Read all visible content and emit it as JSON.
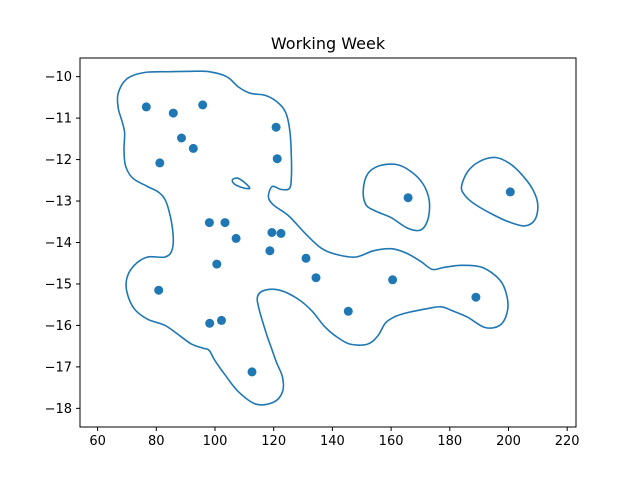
{
  "chart_data": {
    "type": "scatter",
    "title": "Working Week",
    "xlabel": "",
    "ylabel": "",
    "xlim": [
      54,
      223
    ],
    "ylim": [
      -18.45,
      -9.55
    ],
    "xticks": [
      60,
      80,
      100,
      120,
      140,
      160,
      180,
      200,
      220
    ],
    "yticks": [
      -10,
      -11,
      -12,
      -13,
      -14,
      -15,
      -16,
      -17,
      -18
    ],
    "grid": false,
    "legend": "none",
    "colors": {
      "series": "#1f77b4",
      "axes": "#000000",
      "background": "#ffffff"
    },
    "points": [
      {
        "x": 76.6,
        "y": -10.73
      },
      {
        "x": 85.8,
        "y": -10.88
      },
      {
        "x": 95.8,
        "y": -10.68
      },
      {
        "x": 88.6,
        "y": -11.48
      },
      {
        "x": 92.6,
        "y": -11.73
      },
      {
        "x": 81.2,
        "y": -12.08
      },
      {
        "x": 120.8,
        "y": -11.22
      },
      {
        "x": 121.2,
        "y": -11.98
      },
      {
        "x": 98.1,
        "y": -13.52
      },
      {
        "x": 103.4,
        "y": -13.52
      },
      {
        "x": 107.2,
        "y": -13.9
      },
      {
        "x": 119.4,
        "y": -13.76
      },
      {
        "x": 122.5,
        "y": -13.78
      },
      {
        "x": 100.6,
        "y": -14.52
      },
      {
        "x": 118.7,
        "y": -14.2
      },
      {
        "x": 131.0,
        "y": -14.38
      },
      {
        "x": 134.4,
        "y": -14.85
      },
      {
        "x": 80.8,
        "y": -15.15
      },
      {
        "x": 98.2,
        "y": -15.95
      },
      {
        "x": 102.2,
        "y": -15.88
      },
      {
        "x": 112.6,
        "y": -17.12
      },
      {
        "x": 145.4,
        "y": -15.66
      },
      {
        "x": 160.5,
        "y": -14.9
      },
      {
        "x": 165.8,
        "y": -12.92
      },
      {
        "x": 188.9,
        "y": -15.32
      },
      {
        "x": 200.6,
        "y": -12.78
      }
    ],
    "contours": [
      [
        [
          67,
          -10.4
        ],
        [
          70,
          -10.05
        ],
        [
          76,
          -9.9
        ],
        [
          85,
          -9.88
        ],
        [
          92,
          -9.87
        ],
        [
          98,
          -9.88
        ],
        [
          104,
          -10.0
        ],
        [
          108,
          -10.25
        ],
        [
          112,
          -10.4
        ],
        [
          117,
          -10.45
        ],
        [
          121,
          -10.6
        ],
        [
          124,
          -10.85
        ],
        [
          125.5,
          -11.3
        ],
        [
          126,
          -11.9
        ],
        [
          126,
          -12.45
        ],
        [
          125.3,
          -12.7
        ],
        [
          122.5,
          -12.72
        ],
        [
          119.5,
          -12.65
        ],
        [
          118.2,
          -12.9
        ],
        [
          120,
          -13.1
        ],
        [
          125,
          -13.35
        ],
        [
          131,
          -13.8
        ],
        [
          136.5,
          -14.15
        ],
        [
          142,
          -14.3
        ],
        [
          148,
          -14.35
        ],
        [
          154,
          -14.2
        ],
        [
          160,
          -14.15
        ],
        [
          165,
          -14.25
        ],
        [
          170,
          -14.45
        ],
        [
          174,
          -14.65
        ],
        [
          178,
          -14.6
        ],
        [
          184,
          -14.55
        ],
        [
          191,
          -14.6
        ],
        [
          197,
          -14.9
        ],
        [
          199.5,
          -15.3
        ],
        [
          199.5,
          -15.7
        ],
        [
          197,
          -16.0
        ],
        [
          192,
          -16.05
        ],
        [
          186,
          -15.8
        ],
        [
          181,
          -15.65
        ],
        [
          177,
          -15.55
        ],
        [
          172,
          -15.6
        ],
        [
          165,
          -15.7
        ],
        [
          161,
          -15.8
        ],
        [
          158,
          -15.95
        ],
        [
          155.5,
          -16.25
        ],
        [
          152,
          -16.45
        ],
        [
          146,
          -16.45
        ],
        [
          141,
          -16.25
        ],
        [
          137,
          -16.0
        ],
        [
          133,
          -15.65
        ],
        [
          128,
          -15.35
        ],
        [
          122,
          -15.15
        ],
        [
          117,
          -15.15
        ],
        [
          114.5,
          -15.3
        ],
        [
          115,
          -15.6
        ],
        [
          117.5,
          -16.2
        ],
        [
          119.5,
          -16.6
        ],
        [
          121,
          -16.9
        ],
        [
          123,
          -17.25
        ],
        [
          123,
          -17.6
        ],
        [
          120,
          -17.85
        ],
        [
          114,
          -17.9
        ],
        [
          108,
          -17.6
        ],
        [
          103.5,
          -17.2
        ],
        [
          100,
          -16.85
        ],
        [
          98,
          -16.6
        ],
        [
          96,
          -16.55
        ],
        [
          92,
          -16.45
        ],
        [
          88,
          -16.25
        ],
        [
          83,
          -16.0
        ],
        [
          77,
          -15.85
        ],
        [
          72.5,
          -15.6
        ],
        [
          70,
          -15.2
        ],
        [
          70,
          -14.85
        ],
        [
          72.5,
          -14.55
        ],
        [
          77,
          -14.35
        ],
        [
          83,
          -14.35
        ],
        [
          85.5,
          -14.15
        ],
        [
          85.5,
          -13.65
        ],
        [
          83.5,
          -13.05
        ],
        [
          81,
          -12.8
        ],
        [
          77,
          -12.65
        ],
        [
          72,
          -12.45
        ],
        [
          69.5,
          -12.15
        ],
        [
          69,
          -11.75
        ],
        [
          69.2,
          -11.35
        ],
        [
          68.2,
          -11.05
        ],
        [
          67,
          -10.75
        ],
        [
          67,
          -10.4
        ]
      ],
      [
        [
          106,
          -12.48
        ],
        [
          107.8,
          -12.45
        ],
        [
          110,
          -12.55
        ],
        [
          111.8,
          -12.68
        ],
        [
          111,
          -12.7
        ],
        [
          108.5,
          -12.66
        ],
        [
          106.3,
          -12.57
        ],
        [
          106,
          -12.48
        ]
      ],
      [
        [
          150.5,
          -12.75
        ],
        [
          152,
          -12.35
        ],
        [
          156,
          -12.15
        ],
        [
          162,
          -12.12
        ],
        [
          167,
          -12.3
        ],
        [
          171,
          -12.6
        ],
        [
          173,
          -13.0
        ],
        [
          172.5,
          -13.45
        ],
        [
          170,
          -13.7
        ],
        [
          165.5,
          -13.65
        ],
        [
          160,
          -13.4
        ],
        [
          155,
          -13.25
        ],
        [
          151.5,
          -13.1
        ],
        [
          150.5,
          -12.75
        ]
      ],
      [
        [
          184,
          -12.65
        ],
        [
          186,
          -12.3
        ],
        [
          190,
          -12.05
        ],
        [
          195.5,
          -11.95
        ],
        [
          200.5,
          -12.1
        ],
        [
          205,
          -12.4
        ],
        [
          208.5,
          -12.75
        ],
        [
          210,
          -13.1
        ],
        [
          209,
          -13.45
        ],
        [
          205.5,
          -13.6
        ],
        [
          200,
          -13.5
        ],
        [
          194,
          -13.3
        ],
        [
          188,
          -13.05
        ],
        [
          185,
          -12.85
        ],
        [
          184,
          -12.65
        ]
      ]
    ]
  }
}
